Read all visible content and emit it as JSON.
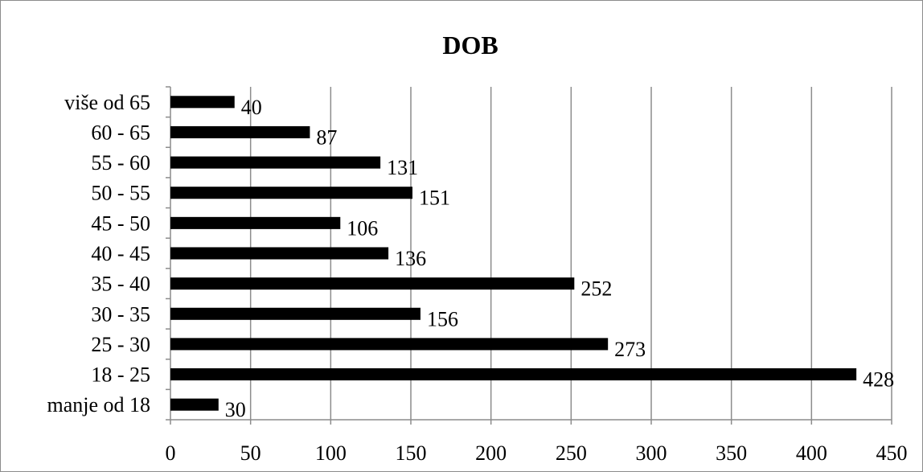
{
  "chart_data": {
    "type": "bar",
    "orientation": "horizontal",
    "title": "DOB",
    "categories": [
      "manje od 18",
      "18 - 25",
      "25 - 30",
      "30 - 35",
      "35 - 40",
      "40 - 45",
      "45 - 50",
      "50 - 55",
      "55 - 60",
      "60 - 65",
      "više od 65"
    ],
    "values": [
      30,
      428,
      273,
      156,
      252,
      136,
      106,
      151,
      131,
      87,
      40
    ],
    "xlim": [
      0,
      450
    ],
    "xticks": [
      0,
      50,
      100,
      150,
      200,
      250,
      300,
      350,
      400,
      450
    ],
    "xlabel": "",
    "ylabel": "",
    "grid": "vertical",
    "legend": "none",
    "bar_color": "#000000",
    "grid_color": "#8c8c8c"
  }
}
